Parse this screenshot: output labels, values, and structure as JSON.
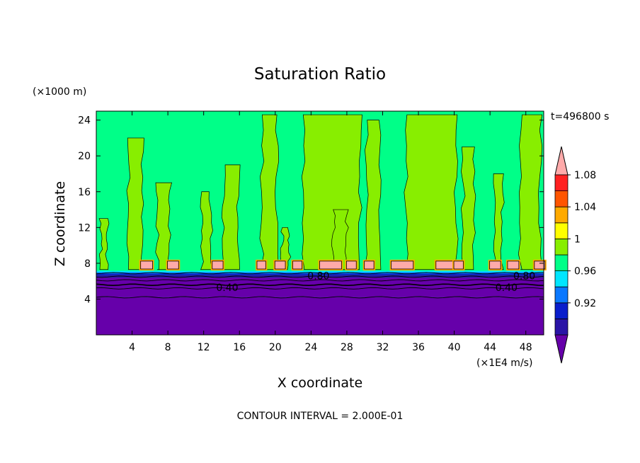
{
  "chart_data": {
    "type": "heatmap",
    "title": "Saturation Ratio",
    "xlabel": "X coordinate",
    "ylabel": "Z coordinate",
    "x_unit": "(×1E4 m/s)",
    "y_unit": "(×1000 m)",
    "time_label": "t=496800 s",
    "footer": "CONTOUR INTERVAL = 2.000E-01",
    "xlim": [
      0,
      50
    ],
    "ylim": [
      0,
      25
    ],
    "x_ticks": [
      "4",
      "8",
      "12",
      "16",
      "20",
      "24",
      "28",
      "32",
      "36",
      "40",
      "44",
      "48"
    ],
    "y_ticks": [
      "4",
      "8",
      "12",
      "16",
      "20",
      "24"
    ],
    "contour_labels": [
      "0.80",
      "0.40",
      "0.40",
      "0.80"
    ],
    "colorbar": {
      "tick_labels": [
        "1.08",
        "1.04",
        "1",
        "0.96",
        "0.92"
      ],
      "levels": [
        {
          "color": "#6600aa",
          "range": "< 0.90"
        },
        {
          "color": "#2a14a6",
          "range": "0.90 – 0.92"
        },
        {
          "color": "#0a1ecc",
          "range": "0.92 – 0.94"
        },
        {
          "color": "#0a78ff",
          "range": "0.94 – 0.96"
        },
        {
          "color": "#00e6ff",
          "range": "0.96 – 0.98"
        },
        {
          "color": "#00ff88",
          "range": "0.98 – 1.00"
        },
        {
          "color": "#88ee00",
          "range": "1.00 – 1.02"
        },
        {
          "color": "#ffff00",
          "range": "1.02 – 1.04"
        },
        {
          "color": "#ffaa00",
          "range": "1.04 – 1.06"
        },
        {
          "color": "#ff5500",
          "range": "1.06 – 1.08"
        },
        {
          "color": "#ff2020",
          "range": "1.08 – 1.10"
        },
        {
          "color": "#ffaaaa",
          "range": "> 1.10"
        }
      ]
    },
    "field": {
      "lower_layer_top_z": 6.8,
      "upper_layer_value_range": [
        0.98,
        1.02
      ],
      "high_patch_x": [
        6,
        9,
        14,
        19,
        21,
        23,
        26,
        29,
        31,
        34,
        39,
        41,
        45,
        47,
        50
      ]
    }
  }
}
